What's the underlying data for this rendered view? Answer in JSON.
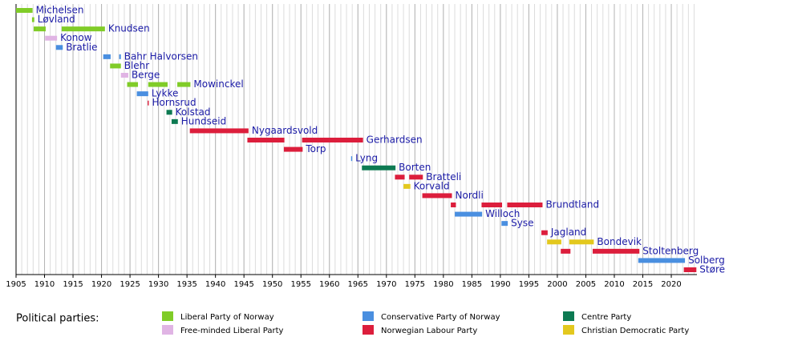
{
  "chart_data": {
    "type": "timeline",
    "xlim": [
      1905,
      2024.5
    ],
    "xticks": [
      1905,
      1910,
      1915,
      1920,
      1925,
      1930,
      1935,
      1940,
      1945,
      1950,
      1955,
      1960,
      1965,
      1970,
      1975,
      1980,
      1985,
      1990,
      1995,
      2000,
      2005,
      2010,
      2015,
      2020
    ],
    "minor_grid_step": 1,
    "grid": true,
    "rows": [
      {
        "name": "Michelsen",
        "color": "#80cc28",
        "periods": [
          [
            1905,
            1907.9
          ]
        ]
      },
      {
        "name": "Løvland",
        "color": "#80cc28",
        "periods": [
          [
            1907.8,
            1908.2
          ]
        ]
      },
      {
        "name": "Knudsen",
        "color": "#80cc28",
        "periods": [
          [
            1908.1,
            1910.2
          ],
          [
            1913.0,
            1920.6
          ]
        ]
      },
      {
        "name": "Konow",
        "color": "#e0b4e4",
        "periods": [
          [
            1910.1,
            1912.2
          ]
        ]
      },
      {
        "name": "Bratlie",
        "color": "#4a8fe0",
        "periods": [
          [
            1912.0,
            1913.2
          ]
        ]
      },
      {
        "name": "Bahr Halvorsen",
        "color": "#4a8fe0",
        "periods": [
          [
            1920.3,
            1921.6
          ],
          [
            1923.1,
            1923.4
          ]
        ]
      },
      {
        "name": "Blehr",
        "color": "#80cc28",
        "periods": [
          [
            1921.5,
            1923.4
          ]
        ]
      },
      {
        "name": "Berge",
        "color": "#e0b4e4",
        "periods": [
          [
            1923.4,
            1924.7
          ]
        ]
      },
      {
        "name": "Mowinckel",
        "color": "#80cc28",
        "periods": [
          [
            1924.5,
            1926.4
          ],
          [
            1928.2,
            1931.6
          ],
          [
            1933.3,
            1935.6
          ]
        ]
      },
      {
        "name": "Lykke",
        "color": "#4a8fe0",
        "periods": [
          [
            1926.2,
            1928.2
          ]
        ]
      },
      {
        "name": "Hornsrud",
        "color": "#dc1e3c",
        "periods": [
          [
            1928.1,
            1928.3
          ]
        ]
      },
      {
        "name": "Kolstad",
        "color": "#0d7a52",
        "periods": [
          [
            1931.4,
            1932.4
          ]
        ]
      },
      {
        "name": "Hundseid",
        "color": "#0d7a52",
        "periods": [
          [
            1932.3,
            1933.4
          ]
        ]
      },
      {
        "name": "Nygaardsvold",
        "color": "#dc1e3c",
        "periods": [
          [
            1935.5,
            1945.8
          ]
        ]
      },
      {
        "name": "Gerhardsen",
        "color": "#dc1e3c",
        "periods": [
          [
            1945.6,
            1952.1
          ],
          [
            1955.2,
            1965.9
          ]
        ]
      },
      {
        "name": "Torp",
        "color": "#dc1e3c",
        "periods": [
          [
            1952.0,
            1955.3
          ]
        ]
      },
      {
        "name": "Lyng",
        "color": "#4a8fe0",
        "periods": [
          [
            1963.8,
            1964.0
          ]
        ]
      },
      {
        "name": "Borten",
        "color": "#0d7a52",
        "periods": [
          [
            1965.7,
            1971.6
          ]
        ]
      },
      {
        "name": "Bratteli",
        "color": "#dc1e3c",
        "periods": [
          [
            1971.5,
            1973.2
          ],
          [
            1974.0,
            1976.4
          ]
        ]
      },
      {
        "name": "Korvald",
        "color": "#e3c81e",
        "periods": [
          [
            1973.0,
            1974.2
          ]
        ]
      },
      {
        "name": "Nordli",
        "color": "#dc1e3c",
        "periods": [
          [
            1976.3,
            1981.5
          ]
        ]
      },
      {
        "name": "Brundtland",
        "color": "#dc1e3c",
        "periods": [
          [
            1981.3,
            1982.2
          ],
          [
            1986.7,
            1990.3
          ],
          [
            1991.2,
            1997.4
          ]
        ]
      },
      {
        "name": "Willoch",
        "color": "#4a8fe0",
        "periods": [
          [
            1982.0,
            1986.8
          ]
        ]
      },
      {
        "name": "Syse",
        "color": "#4a8fe0",
        "periods": [
          [
            1990.2,
            1991.3
          ]
        ]
      },
      {
        "name": "Jagland",
        "color": "#dc1e3c",
        "periods": [
          [
            1997.2,
            1998.3
          ]
        ]
      },
      {
        "name": "Bondevik",
        "color": "#e3c81e",
        "periods": [
          [
            1998.2,
            2000.7
          ],
          [
            2002.1,
            2006.4
          ]
        ]
      },
      {
        "name": "Stoltenberg",
        "color": "#dc1e3c",
        "periods": [
          [
            2000.6,
            2002.3
          ],
          [
            2006.2,
            2014.4
          ]
        ]
      },
      {
        "name": "Solberg",
        "color": "#4a8fe0",
        "periods": [
          [
            2014.2,
            2022.4
          ]
        ]
      },
      {
        "name": "Støre",
        "color": "#dc1e3c",
        "periods": [
          [
            2022.2,
            2024.4
          ]
        ]
      }
    ],
    "legend_title": "Political parties:",
    "legend": [
      {
        "name": "Liberal Party of Norway",
        "color": "#80cc28"
      },
      {
        "name": "Free-minded Liberal Party",
        "color": "#e0b4e4"
      },
      {
        "name": "Conservative Party of Norway",
        "color": "#4a8fe0"
      },
      {
        "name": "Norwegian Labour Party",
        "color": "#dc1e3c"
      },
      {
        "name": "Centre Party",
        "color": "#0d7a52"
      },
      {
        "name": "Christian Democratic Party",
        "color": "#e3c81e"
      }
    ]
  }
}
